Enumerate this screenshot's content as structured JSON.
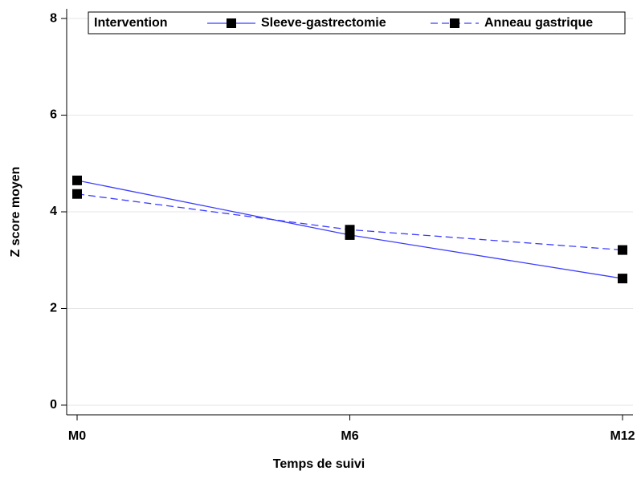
{
  "chart_data": {
    "type": "line",
    "x_label": "Temps de suivi",
    "y_label": "Z score moyen",
    "categories": [
      "M0",
      "M6",
      "M12"
    ],
    "series": [
      {
        "name": "Sleeve-gastrectomie",
        "color": "#3c3cff",
        "line_style": "solid",
        "marker": "square",
        "values": [
          4.65,
          3.52,
          2.62
        ]
      },
      {
        "name": "Anneau gastrique",
        "color": "#3c3cff",
        "line_style": "dashed",
        "marker": "square",
        "values": [
          4.37,
          3.63,
          3.21
        ]
      }
    ],
    "legend_title": "Intervention",
    "legend_position": "top",
    "ylim": [
      -0.2,
      8.2
    ],
    "yticks": [
      0,
      2,
      4,
      6,
      8
    ],
    "grid": true
  }
}
